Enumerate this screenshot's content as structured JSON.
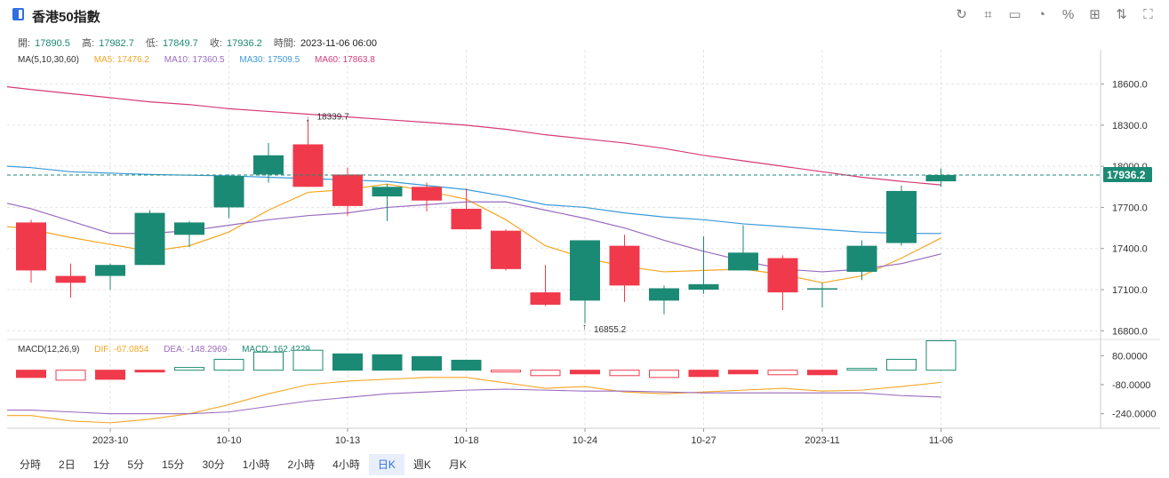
{
  "header": {
    "title": "香港50指數"
  },
  "toolbar": {
    "icons": [
      "refresh-icon",
      "crop-icon",
      "image-icon",
      "pie-chart-icon",
      "percent-icon",
      "grid-icon",
      "swap-icon",
      "fullscreen-icon"
    ]
  },
  "ohlc": {
    "open_label": "開:",
    "open": "17890.5",
    "high_label": "高:",
    "high": "17982.7",
    "low_label": "低:",
    "low": "17849.7",
    "close_label": "收:",
    "close": "17936.2",
    "time_label": "時間:",
    "time": "2023-11-06 06:00"
  },
  "ma": {
    "label": "MA(5,10,30,60)",
    "ma5": "MA5: 17476.2",
    "ma10": "MA10: 17360.5",
    "ma30": "MA30: 17509.5",
    "ma60": "MA60: 17863.8"
  },
  "macd": {
    "label": "MACD(12,26,9)",
    "dif": "DIF: -67.0854",
    "dea": "DEA: -148.2969",
    "macd": "MACD: 162.4229"
  },
  "colors": {
    "up": "#1b8a74",
    "down": "#f03a4b",
    "ma5": "#f5a623",
    "ma10": "#9b6bbf",
    "ma30": "#3a9ad9",
    "ma60": "#d63a78"
  },
  "periods": [
    "分時",
    "2日",
    "1分",
    "5分",
    "15分",
    "30分",
    "1小時",
    "2小時",
    "4小時",
    "日K",
    "週K",
    "月K"
  ],
  "active_period": "日K",
  "chart_data": [
    {
      "type": "candlestick",
      "title": "香港50指數",
      "yticks": [
        "18600.0",
        "18300.0",
        "18000.0",
        "17700.0",
        "17400.0",
        "17100.0",
        "16800.0"
      ],
      "ylim": [
        16750,
        18850
      ],
      "xticks": [
        {
          "label": "2023-10",
          "index": 2
        },
        {
          "label": "10-10",
          "index": 5
        },
        {
          "label": "10-13",
          "index": 8
        },
        {
          "label": "10-18",
          "index": 11
        },
        {
          "label": "10-24",
          "index": 14
        },
        {
          "label": "10-27",
          "index": 17
        },
        {
          "label": "2023-11",
          "index": 20
        },
        {
          "label": "11-06",
          "index": 23
        }
      ],
      "candles": [
        {
          "o": 17590,
          "h": 17610,
          "l": 17150,
          "c": 17240
        },
        {
          "o": 17200,
          "h": 17290,
          "l": 17040,
          "c": 17150
        },
        {
          "o": 17200,
          "h": 17290,
          "l": 17100,
          "c": 17280
        },
        {
          "o": 17280,
          "h": 17680,
          "l": 17280,
          "c": 17660
        },
        {
          "o": 17500,
          "h": 17600,
          "l": 17410,
          "c": 17590
        },
        {
          "o": 17700,
          "h": 17940,
          "l": 17620,
          "c": 17930
        },
        {
          "o": 17940,
          "h": 18170,
          "l": 17880,
          "c": 18080
        },
        {
          "o": 18160,
          "h": 18339.7,
          "l": 17850,
          "c": 17850
        },
        {
          "o": 17940,
          "h": 17990,
          "l": 17640,
          "c": 17710
        },
        {
          "o": 17780,
          "h": 17870,
          "l": 17600,
          "c": 17850
        },
        {
          "o": 17850,
          "h": 17880,
          "l": 17670,
          "c": 17750
        },
        {
          "o": 17690,
          "h": 17840,
          "l": 17560,
          "c": 17540
        },
        {
          "o": 17530,
          "h": 17540,
          "l": 17240,
          "c": 17250
        },
        {
          "o": 17080,
          "h": 17280,
          "l": 16980,
          "c": 16990
        },
        {
          "o": 17020,
          "h": 17460,
          "l": 16855.2,
          "c": 17460
        },
        {
          "o": 17420,
          "h": 17500,
          "l": 17010,
          "c": 17130
        },
        {
          "o": 17020,
          "h": 17130,
          "l": 16920,
          "c": 17110
        },
        {
          "o": 17100,
          "h": 17490,
          "l": 17070,
          "c": 17140
        },
        {
          "o": 17240,
          "h": 17570,
          "l": 17240,
          "c": 17370
        },
        {
          "o": 17330,
          "h": 17350,
          "l": 16950,
          "c": 17080
        },
        {
          "o": 17110,
          "h": 17150,
          "l": 16970,
          "c": 17110
        },
        {
          "o": 17230,
          "h": 17460,
          "l": 17170,
          "c": 17420
        },
        {
          "o": 17440,
          "h": 17860,
          "l": 17420,
          "c": 17820
        },
        {
          "o": 17890.5,
          "h": 17982.7,
          "l": 17849.7,
          "c": 17936.2
        }
      ],
      "annotations": [
        {
          "text": "18339.7",
          "index": 7,
          "value": 18339.7
        },
        {
          "text": "16855.2",
          "index": 14,
          "value": 16855.2
        }
      ],
      "last_price_label": "17936.2",
      "series": [
        {
          "name": "MA5",
          "values": [
            17540,
            17480,
            17430,
            17380,
            17420,
            17520,
            17680,
            17810,
            17830,
            17870,
            17820,
            17760,
            17610,
            17420,
            17330,
            17270,
            17230,
            17240,
            17250,
            17210,
            17150,
            17200,
            17330,
            17476.2
          ]
        },
        {
          "name": "MA10",
          "values": [
            17690,
            17600,
            17510,
            17510,
            17530,
            17570,
            17610,
            17640,
            17660,
            17700,
            17720,
            17740,
            17740,
            17680,
            17620,
            17550,
            17460,
            17380,
            17310,
            17250,
            17230,
            17250,
            17290,
            17360.5
          ]
        },
        {
          "name": "MA30",
          "values": [
            17990,
            17960,
            17950,
            17940,
            17935,
            17930,
            17920,
            17910,
            17900,
            17890,
            17860,
            17830,
            17780,
            17720,
            17700,
            17660,
            17630,
            17610,
            17580,
            17560,
            17540,
            17520,
            17510,
            17509.5
          ]
        },
        {
          "name": "MA60",
          "values": [
            18560,
            18530,
            18500,
            18470,
            18450,
            18420,
            18400,
            18380,
            18360,
            18340,
            18320,
            18300,
            18270,
            18230,
            18200,
            18170,
            18130,
            18080,
            18040,
            18000,
            17960,
            17920,
            17890,
            17863.8
          ]
        }
      ]
    },
    {
      "type": "bar",
      "title": "MACD(12,26,9)",
      "yticks": [
        "80.0000",
        "-80.0000",
        "-240.0000"
      ],
      "ylim": [
        -320,
        160
      ],
      "macd_hist": [
        -40,
        -55,
        -50,
        -10,
        15,
        60,
        100,
        110,
        90,
        85,
        75,
        55,
        -10,
        -30,
        -20,
        -30,
        -40,
        -35,
        -20,
        -25,
        -25,
        10,
        60,
        162.4229
      ],
      "series": [
        {
          "name": "DIF",
          "values": [
            -250,
            -280,
            -290,
            -270,
            -240,
            -190,
            -130,
            -80,
            -60,
            -50,
            -40,
            -40,
            -70,
            -100,
            -90,
            -120,
            -130,
            -120,
            -110,
            -100,
            -115,
            -110,
            -90,
            -67.0854
          ]
        },
        {
          "name": "DEA",
          "values": [
            -220,
            -230,
            -240,
            -240,
            -240,
            -230,
            -200,
            -170,
            -150,
            -130,
            -120,
            -110,
            -105,
            -110,
            -115,
            -115,
            -120,
            -125,
            -125,
            -125,
            -125,
            -125,
            -140,
            -148.2969
          ]
        }
      ]
    }
  ]
}
